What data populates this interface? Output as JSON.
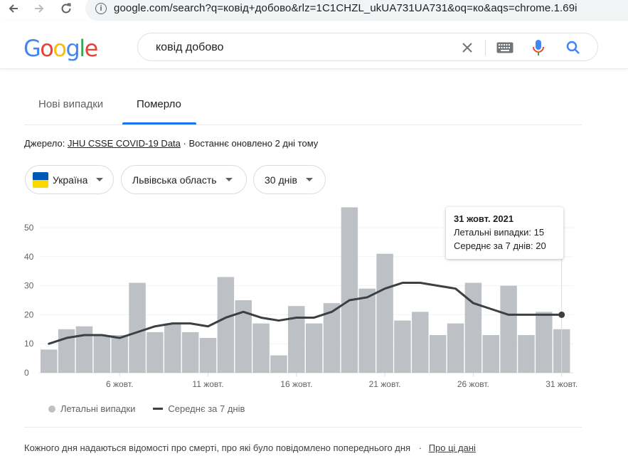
{
  "browser": {
    "url": "google.com/search?q=ковід+добово&rlz=1C1CHZL_ukUA731UA731&oq=ко&aqs=chrome.1.69i"
  },
  "search": {
    "query": "ковід добово"
  },
  "tabs": [
    {
      "label": "Нові випадки",
      "active": false
    },
    {
      "label": "Померло",
      "active": true
    }
  ],
  "source": {
    "prefix": "Джерело: ",
    "link": "JHU CSSE COVID-19 Data",
    "suffix": " · Востаннє оновлено 2 дні тому"
  },
  "filters": {
    "country": "Україна",
    "region": "Львівська область",
    "period": "30 днів"
  },
  "colors": {
    "accent": "#1a73e8",
    "bar": "#bdc1c6",
    "line": "#3c4043",
    "flag_top": "#0057b7",
    "flag_bottom": "#ffd700"
  },
  "chart_data": {
    "type": "bar",
    "ylim": [
      0,
      57
    ],
    "yticks": [
      0,
      10,
      20,
      30,
      40,
      50
    ],
    "xticks": [
      {
        "index": 4,
        "label": "6 жовт."
      },
      {
        "index": 9,
        "label": "11 жовт."
      },
      {
        "index": 14,
        "label": "16 жовт."
      },
      {
        "index": 19,
        "label": "21 жовт."
      },
      {
        "index": 24,
        "label": "26 жовт."
      },
      {
        "index": 29,
        "label": "31 жовт."
      }
    ],
    "series": [
      {
        "name": "Летальні випадки",
        "values": [
          8,
          15,
          16,
          13,
          13,
          31,
          14,
          17,
          14,
          12,
          33,
          25,
          17,
          6,
          23,
          17,
          24,
          57,
          29,
          41,
          18,
          21,
          13,
          17,
          31,
          13,
          30,
          13,
          21,
          15
        ]
      },
      {
        "name": "Середнє за 7 днів",
        "values": [
          10,
          12,
          13,
          13,
          12,
          14,
          16,
          17,
          17,
          16,
          19,
          21,
          19,
          18,
          19,
          19,
          21,
          25,
          26,
          29,
          31,
          31,
          30,
          29,
          24,
          22,
          20,
          20,
          20,
          20
        ]
      }
    ],
    "legend": "bottom"
  },
  "tooltip": {
    "date": "31 жовт. 2021",
    "deaths": "Летальні випадки: 15",
    "average": "Середнє за 7 днів: 20"
  },
  "footer": {
    "text": "Кожного дня надаються відомості про смерті, про які було повідомлено попереднього дня",
    "separator": "·",
    "link": "Про ці дані"
  }
}
